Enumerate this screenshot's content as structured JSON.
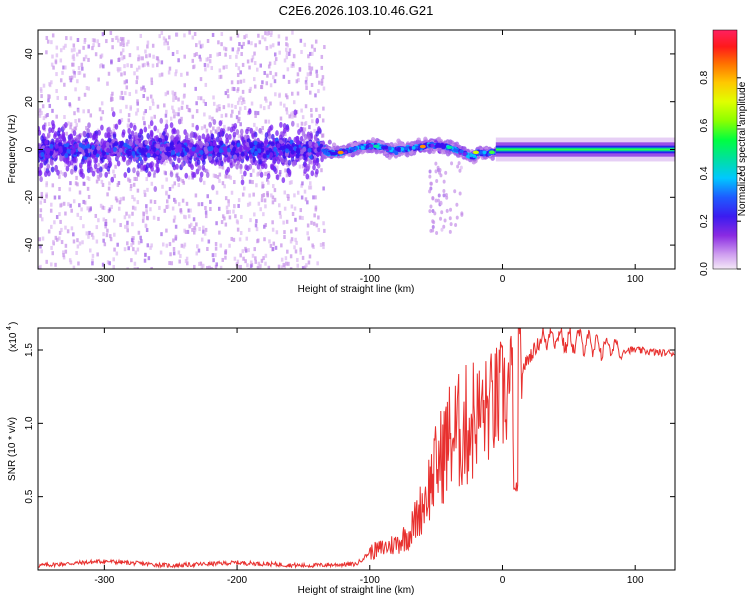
{
  "title": "C2E6.2026.103.10.46.G21",
  "chart_data": [
    {
      "type": "heatmap",
      "name": "spectrogram",
      "xlabel": "Height of straight line (km)",
      "ylabel": "Frequency (Hz)",
      "xlim": [
        -350,
        130
      ],
      "ylim": [
        -50,
        50
      ],
      "xticks": [
        -300,
        -200,
        -100,
        0,
        100
      ],
      "yticks": [
        -40,
        -20,
        0,
        20,
        40
      ],
      "colorbar": {
        "label": "Normalized spectral amplitude",
        "range": [
          0.0,
          1.0
        ],
        "ticks": [
          0.0,
          0.2,
          0.4,
          0.6,
          0.8
        ]
      },
      "description_points": {
        "noisy_region_end_km": -135,
        "center_band_hz": 0,
        "open_loop_start_km": -130
      }
    },
    {
      "type": "line",
      "name": "snr",
      "xlabel": "Height of straight line (km)",
      "ylabel": "SNR (10 * v/v)",
      "y_multiplier": "(x10",
      "y_multiplier_exp": "4",
      "xlim": [
        -350,
        130
      ],
      "ylim": [
        0,
        16500
      ],
      "xticks": [
        -300,
        -200,
        -100,
        0,
        100
      ],
      "yticks": [
        5000,
        10000,
        15000
      ],
      "ytick_labels": [
        "0.5",
        "1.0",
        "1.5"
      ],
      "series": [
        {
          "name": "SNR",
          "color": "#e8302e",
          "x": [
            -350,
            -300,
            -250,
            -200,
            -150,
            -110,
            -100,
            -90,
            -80,
            -70,
            -60,
            -50,
            -40,
            -30,
            -20,
            -10,
            0,
            10,
            20,
            30,
            40,
            50,
            60,
            70,
            80,
            90,
            100,
            110,
            120,
            130
          ],
          "y": [
            300,
            600,
            300,
            500,
            300,
            400,
            1200,
            1500,
            1800,
            2500,
            4500,
            7000,
            9000,
            9500,
            10500,
            11000,
            11800,
            12800,
            14500,
            15800,
            16000,
            15500,
            15700,
            15200,
            15300,
            15000,
            15000,
            14900,
            14800,
            14800
          ]
        }
      ]
    }
  ]
}
